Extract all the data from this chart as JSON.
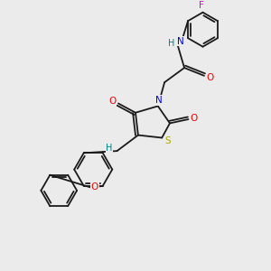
{
  "bg_color": "#ebebeb",
  "bond_color": "#1a1a1a",
  "atoms": {
    "S": {
      "color": "#aaaa00"
    },
    "N": {
      "color": "#0000ee"
    },
    "O": {
      "color": "#ee0000"
    },
    "F": {
      "color": "#dd00dd"
    },
    "H": {
      "color": "#008080"
    }
  },
  "figsize": [
    3.0,
    3.0
  ],
  "dpi": 100
}
